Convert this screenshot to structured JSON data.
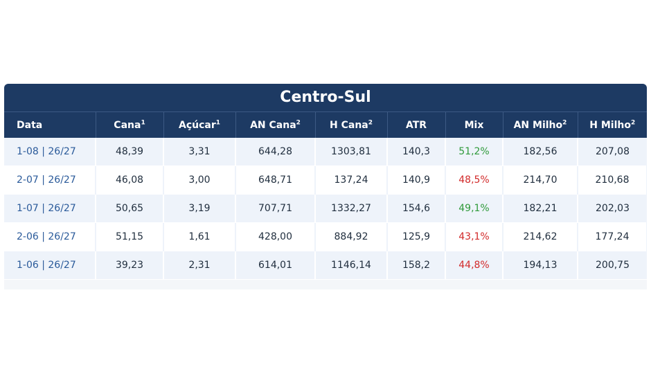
{
  "table": {
    "title": "Centro-Sul",
    "headers": [
      {
        "label": "Data",
        "sup": ""
      },
      {
        "label": "Cana",
        "sup": "1"
      },
      {
        "label": "Açúcar",
        "sup": "1"
      },
      {
        "label": "AN Cana",
        "sup": "2"
      },
      {
        "label": "H Cana",
        "sup": "2"
      },
      {
        "label": "ATR",
        "sup": ""
      },
      {
        "label": "Mix",
        "sup": ""
      },
      {
        "label": "AN Milho",
        "sup": "2"
      },
      {
        "label": "H Milho",
        "sup": "2"
      }
    ],
    "rows": [
      {
        "date": "1-08 | 26/27",
        "cana": "48,39",
        "acucar": "3,31",
        "an_cana": "644,28",
        "h_cana": "1303,81",
        "atr": "140,3",
        "mix": "51,2%",
        "mix_color": "green",
        "an_milho": "182,56",
        "h_milho": "207,08"
      },
      {
        "date": "2-07 | 26/27",
        "cana": "46,08",
        "acucar": "3,00",
        "an_cana": "648,71",
        "h_cana": "137,24",
        "atr": "140,9",
        "mix": "48,5%",
        "mix_color": "red",
        "an_milho": "214,70",
        "h_milho": "210,68"
      },
      {
        "date": "1-07 | 26/27",
        "cana": "50,65",
        "acucar": "3,19",
        "an_cana": "707,71",
        "h_cana": "1332,27",
        "atr": "154,6",
        "mix": "49,1%",
        "mix_color": "green",
        "an_milho": "182,21",
        "h_milho": "202,03"
      },
      {
        "date": "2-06 | 26/27",
        "cana": "51,15",
        "acucar": "1,61",
        "an_cana": "428,00",
        "h_cana": "884,92",
        "atr": "125,9",
        "mix": "43,1%",
        "mix_color": "red",
        "an_milho": "214,62",
        "h_milho": "177,24"
      },
      {
        "date": "1-06 | 26/27",
        "cana": "39,23",
        "acucar": "2,31",
        "an_cana": "614,01",
        "h_cana": "1146,14",
        "atr": "158,2",
        "mix": "44,8%",
        "mix_color": "red",
        "an_milho": "194,13",
        "h_milho": "200,75"
      }
    ]
  },
  "colors": {
    "header_bg": "#1d3a63",
    "row_alt_bg": "#eef3fa",
    "date_text": "#2a5a9a",
    "mix_green": "#2f9a3a",
    "mix_red": "#d22a2a"
  }
}
